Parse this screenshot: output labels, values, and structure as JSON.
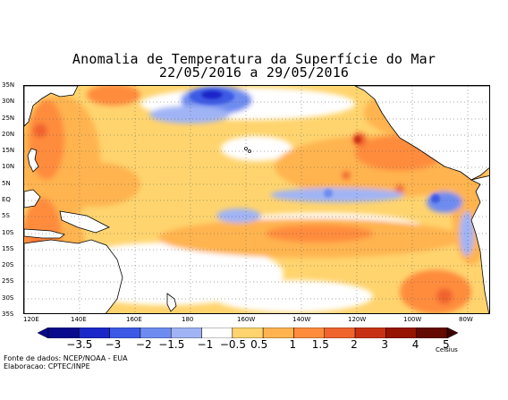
{
  "title": {
    "line1": "Anomalia de Temperatura da Superfície do Mar",
    "line2": "22/05/2016 a 29/05/2016"
  },
  "map": {
    "lat_labels": [
      "35N",
      "30N",
      "25N",
      "20N",
      "15N",
      "10N",
      "5N",
      "EQ",
      "5S",
      "10S",
      "15S",
      "20S",
      "25S",
      "30S",
      "35S"
    ],
    "lon_labels": [
      "120E",
      "140E",
      "160E",
      "180",
      "160W",
      "140W",
      "120W",
      "100W",
      "80W"
    ]
  },
  "colorbar": {
    "labels": [
      "−3.5",
      "−3",
      "−2",
      "−1.5",
      "−1",
      "−0.5",
      "0.5",
      "1",
      "1.5",
      "2",
      "3",
      "4",
      "5"
    ],
    "unit": "Celsius",
    "colors": [
      "#0a0a8c",
      "#1a28c8",
      "#3c5ae6",
      "#6e8cf0",
      "#a0b4f5",
      "#ffffff",
      "#ffd46e",
      "#ffb450",
      "#ff8c3c",
      "#f0642d",
      "#c83214",
      "#961400",
      "#640a00"
    ]
  },
  "footer": {
    "source": "Fonte de dados: NCEP/NOAA - EUA",
    "made_by": "Elaboracao: CPTEC/INPE"
  }
}
